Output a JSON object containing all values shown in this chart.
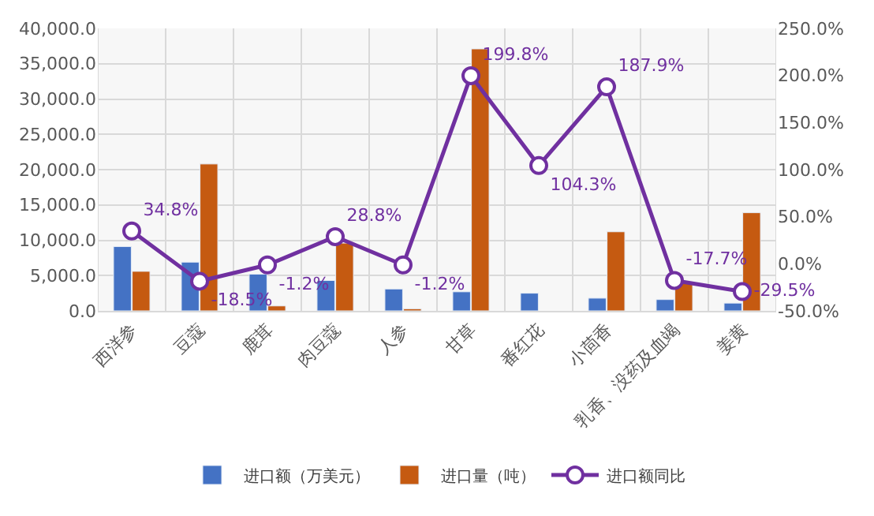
{
  "chart_data": {
    "type": "bar",
    "categories": [
      "西洋参",
      "豆蔻",
      "鹿茸",
      "肉豆蔻",
      "人参",
      "甘草",
      "番红花",
      "小茴香",
      "乳香、没药及血竭",
      "姜黄"
    ],
    "series": [
      {
        "name": "进口额（万美元）",
        "color": "#4472c4",
        "values": [
          9100,
          6900,
          5200,
          4300,
          3100,
          2700,
          2500,
          1800,
          1600,
          1100
        ]
      },
      {
        "name": "进口量（吨）",
        "color": "#c55a11",
        "values": [
          5600,
          20800,
          700,
          9600,
          300,
          37100,
          null,
          11200,
          4000,
          13900
        ]
      },
      {
        "name": "进口额同比",
        "type": "line",
        "axis": "y2",
        "color": "#7030a0",
        "marker": "circle",
        "values": [
          34.8,
          -18.5,
          -1.2,
          28.8,
          -1.2,
          199.8,
          104.3,
          187.9,
          -17.7,
          -29.5
        ],
        "value_labels": [
          "34.8%",
          "-18.5%",
          "-1.2%",
          "28.8%",
          "-1.2%",
          "199.8%",
          "104.3%",
          "187.9%",
          "-17.7%",
          "-29.5%"
        ]
      }
    ],
    "ylim": [
      0,
      40000
    ],
    "yticks": [
      {
        "value": 0,
        "label": "0.0"
      },
      {
        "value": 5000,
        "label": "5,000.0"
      },
      {
        "value": 10000,
        "label": "10,000.0"
      },
      {
        "value": 15000,
        "label": "15,000.0"
      },
      {
        "value": 20000,
        "label": "20,000.0"
      },
      {
        "value": 25000,
        "label": "25,000.0"
      },
      {
        "value": 30000,
        "label": "30,000.0"
      },
      {
        "value": 35000,
        "label": "35,000.0"
      },
      {
        "value": 40000,
        "label": "40,000.0"
      }
    ],
    "y2lim": [
      -50,
      250
    ],
    "y2ticks": [
      {
        "value": -50,
        "label": "-50.0%"
      },
      {
        "value": 0,
        "label": "0.0%"
      },
      {
        "value": 50,
        "label": "50.0%"
      },
      {
        "value": 100,
        "label": "100.0%"
      },
      {
        "value": 150,
        "label": "150.0%"
      },
      {
        "value": 200,
        "label": "200.0%"
      },
      {
        "value": 250,
        "label": "250.0%"
      }
    ],
    "grid": true,
    "legend": "bottom"
  }
}
